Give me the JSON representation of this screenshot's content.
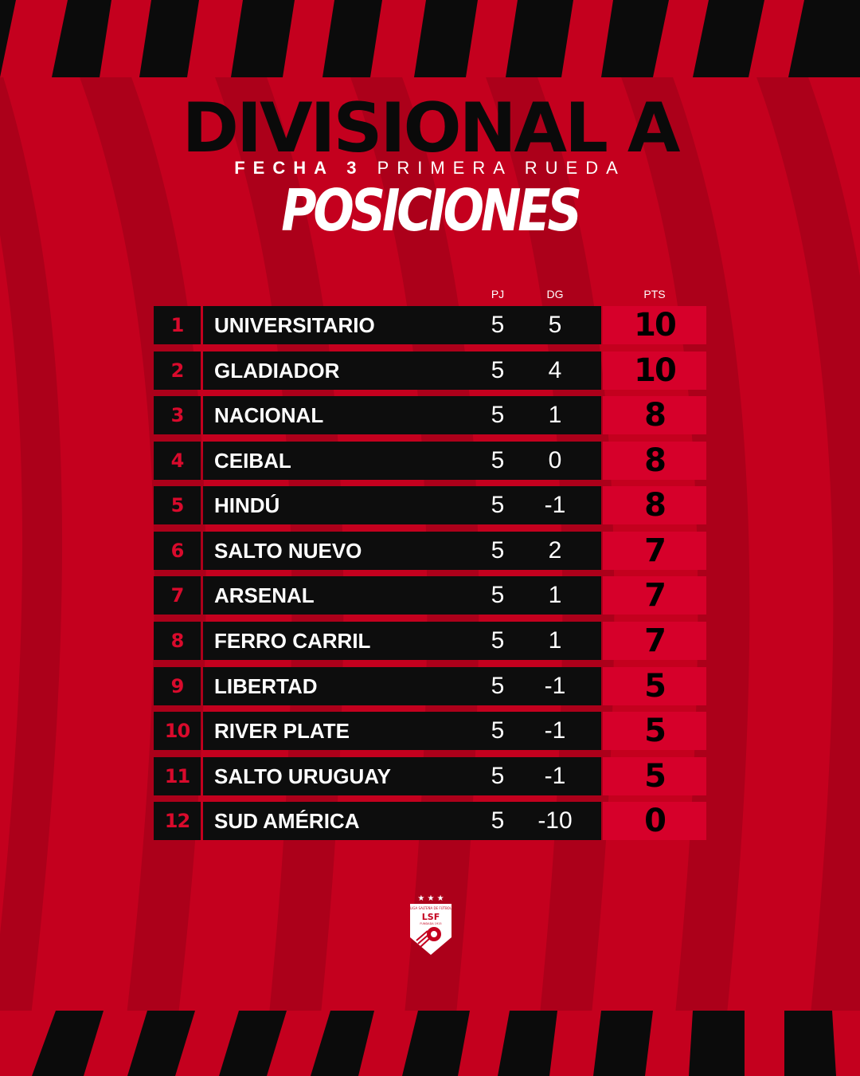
{
  "header": {
    "title": "DIVISIONAL A",
    "subtitle_bold": "FECHA 3",
    "subtitle_rest": "PRIMERA RUEDA",
    "heading": "POSICIONES"
  },
  "columns": {
    "pj": "PJ",
    "dg": "DG",
    "pts": "PTS"
  },
  "standings": [
    {
      "pos": "1",
      "team": "UNIVERSITARIO",
      "pj": "5",
      "dg": "5",
      "pts": "10"
    },
    {
      "pos": "2",
      "team": "GLADIADOR",
      "pj": "5",
      "dg": "4",
      "pts": "10"
    },
    {
      "pos": "3",
      "team": "NACIONAL",
      "pj": "5",
      "dg": "1",
      "pts": "8"
    },
    {
      "pos": "4",
      "team": "CEIBAL",
      "pj": "5",
      "dg": "0",
      "pts": "8"
    },
    {
      "pos": "5",
      "team": "HINDÚ",
      "pj": "5",
      "dg": "-1",
      "pts": "8"
    },
    {
      "pos": "6",
      "team": "SALTO NUEVO",
      "pj": "5",
      "dg": "2",
      "pts": "7"
    },
    {
      "pos": "7",
      "team": "ARSENAL",
      "pj": "5",
      "dg": "1",
      "pts": "7"
    },
    {
      "pos": "8",
      "team": "FERRO CARRIL",
      "pj": "5",
      "dg": "1",
      "pts": "7"
    },
    {
      "pos": "9",
      "team": "LIBERTAD",
      "pj": "5",
      "dg": "-1",
      "pts": "5"
    },
    {
      "pos": "10",
      "team": "RIVER PLATE",
      "pj": "5",
      "dg": "-1",
      "pts": "5"
    },
    {
      "pos": "11",
      "team": "SALTO URUGUAY",
      "pj": "5",
      "dg": "-1",
      "pts": "5"
    },
    {
      "pos": "12",
      "team": "SUD AMÉRICA",
      "pj": "5",
      "dg": "-10",
      "pts": "0"
    }
  ],
  "logo": {
    "stars": "★ ★ ★",
    "top_text": "LIGA SALTEÑA DE FÚTBOL",
    "initials": "LSF",
    "bottom_text": "FUNDADA 1915"
  },
  "colors": {
    "primary_red": "#c4001e",
    "dark_red": "#a30018",
    "black": "#0d0d0d",
    "pts_red": "#d6002a"
  }
}
